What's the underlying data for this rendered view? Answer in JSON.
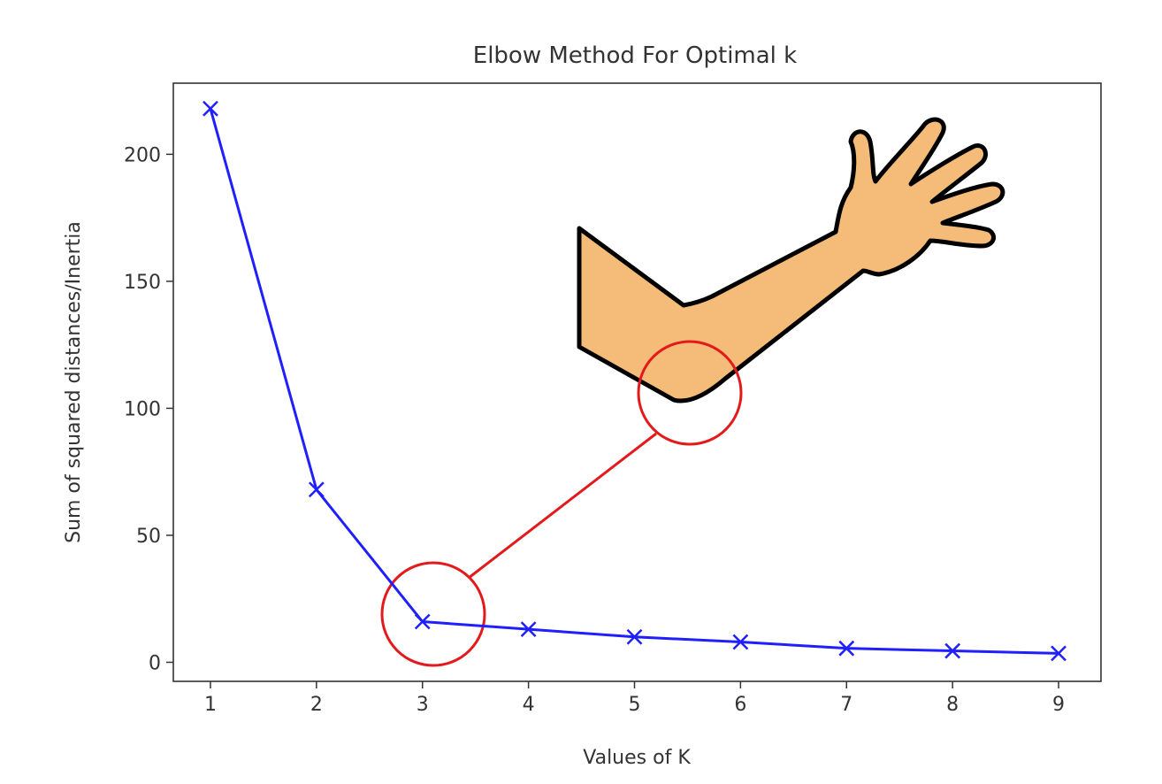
{
  "chart_data": {
    "type": "line",
    "title": "Elbow Method For Optimal k",
    "xlabel": "Values of K",
    "ylabel": "Sum of squared distances/Inertia",
    "x": [
      1,
      2,
      3,
      4,
      5,
      6,
      7,
      8,
      9
    ],
    "series": [
      {
        "values": [
          218,
          68,
          16,
          13,
          10,
          8,
          5.5,
          4.5,
          3.5
        ],
        "color": "#1f1fff",
        "marker": "x"
      }
    ],
    "xlim": [
      0.65,
      9.4
    ],
    "ylim": [
      -7.5,
      228
    ],
    "xticks": [
      1,
      2,
      3,
      4,
      5,
      6,
      7,
      8,
      9
    ],
    "yticks": [
      0,
      50,
      100,
      150,
      200
    ],
    "grid": false,
    "annotations": {
      "elbow_point": {
        "x": 3,
        "y": 16
      },
      "circle_color": "#e31a1c",
      "arm_skin_color": "#f4bc78",
      "arm_outline_color": "#000000",
      "arm-icon": "waving-arm-icon"
    }
  }
}
